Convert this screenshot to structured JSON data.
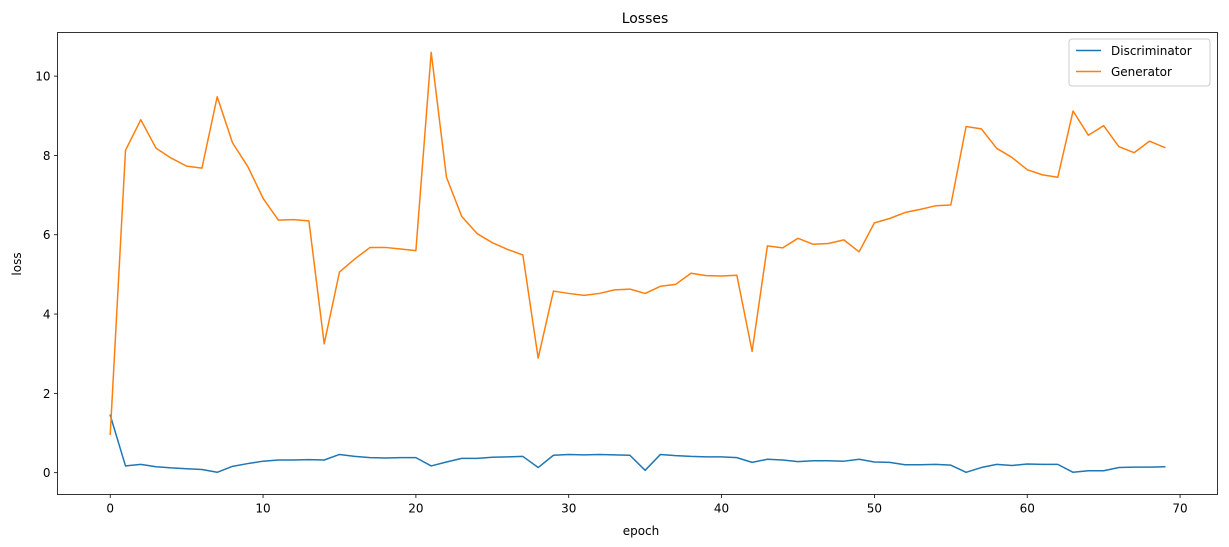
{
  "chart_data": {
    "type": "line",
    "title": "Losses",
    "xlabel": "epoch",
    "ylabel": "loss",
    "xlim": [
      -3.45,
      72.45
    ],
    "ylim": [
      -0.55,
      11.1
    ],
    "xticks": [
      0,
      10,
      20,
      30,
      40,
      50,
      60,
      70
    ],
    "yticks": [
      0,
      2,
      4,
      6,
      8,
      10
    ],
    "grid": false,
    "legend": "top-right",
    "x": [
      0,
      1,
      2,
      3,
      4,
      5,
      6,
      7,
      8,
      9,
      10,
      11,
      12,
      13,
      14,
      15,
      16,
      17,
      18,
      19,
      20,
      21,
      22,
      23,
      24,
      25,
      26,
      27,
      28,
      29,
      30,
      31,
      32,
      33,
      34,
      35,
      36,
      37,
      38,
      39,
      40,
      41,
      42,
      43,
      44,
      45,
      46,
      47,
      48,
      49,
      50,
      51,
      52,
      53,
      54,
      55,
      56,
      57,
      58,
      59,
      60,
      61,
      62,
      63,
      64,
      65,
      66,
      67,
      68,
      69
    ],
    "series": [
      {
        "name": "Discriminator",
        "color": "#1f77b4",
        "values": [
          1.45,
          0.17,
          0.21,
          0.15,
          0.12,
          0.1,
          0.08,
          0.01,
          0.16,
          0.23,
          0.29,
          0.32,
          0.32,
          0.33,
          0.32,
          0.46,
          0.41,
          0.38,
          0.37,
          0.38,
          0.38,
          0.17,
          0.27,
          0.36,
          0.36,
          0.39,
          0.4,
          0.41,
          0.13,
          0.44,
          0.46,
          0.45,
          0.46,
          0.45,
          0.44,
          0.06,
          0.46,
          0.43,
          0.41,
          0.4,
          0.4,
          0.38,
          0.26,
          0.34,
          0.32,
          0.28,
          0.3,
          0.3,
          0.29,
          0.34,
          0.27,
          0.26,
          0.2,
          0.2,
          0.21,
          0.19,
          0.01,
          0.13,
          0.21,
          0.18,
          0.22,
          0.21,
          0.21,
          0.01,
          0.05,
          0.05,
          0.13,
          0.14,
          0.14,
          0.15
        ]
      },
      {
        "name": "Generator",
        "color": "#ff7f0e",
        "values": [
          0.97,
          8.13,
          8.9,
          8.18,
          7.93,
          7.73,
          7.68,
          9.48,
          8.32,
          7.72,
          6.92,
          6.37,
          6.38,
          6.35,
          3.25,
          5.06,
          5.39,
          5.68,
          5.68,
          5.64,
          5.6,
          10.6,
          7.45,
          6.46,
          6.03,
          5.8,
          5.63,
          5.49,
          2.89,
          4.58,
          4.52,
          4.47,
          4.52,
          4.61,
          4.63,
          4.52,
          4.7,
          4.75,
          5.03,
          4.97,
          4.96,
          4.98,
          3.06,
          5.72,
          5.67,
          5.91,
          5.76,
          5.78,
          5.87,
          5.57,
          6.3,
          6.41,
          6.56,
          6.64,
          6.73,
          6.75,
          8.73,
          8.67,
          8.18,
          7.95,
          7.64,
          7.51,
          7.45,
          9.12,
          8.51,
          8.75,
          8.22,
          8.07,
          8.36,
          8.2
        ]
      }
    ]
  }
}
